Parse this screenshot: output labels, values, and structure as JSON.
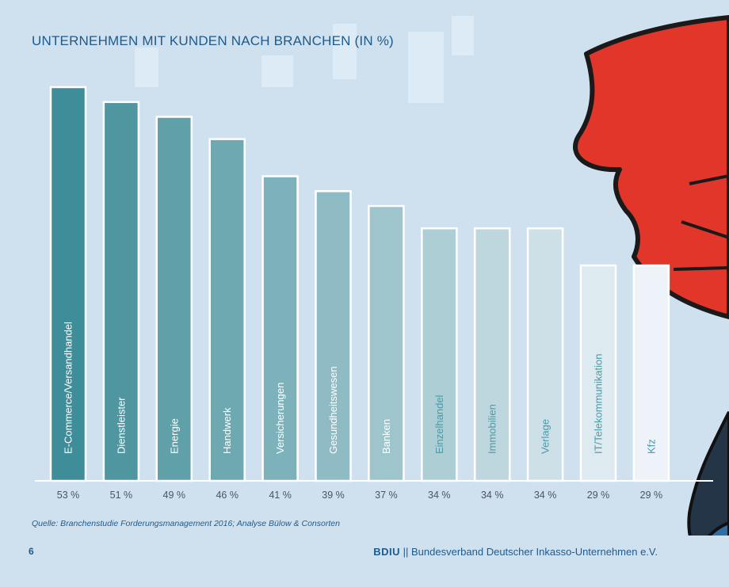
{
  "page": {
    "title": "UNTERNEHMEN MIT KUNDEN NACH BRANCHEN (IN %)",
    "source": "Quelle: Branchenstudie Forderungsmanagement 2016; Analyse Bülow & Consorten",
    "page_number": "6",
    "footer_brand": "BDIU",
    "footer_separator": " || ",
    "footer_org": "Bundesverband Deutscher Inkasso-Unternehmen e.V."
  },
  "colors": {
    "background": "#cfe1ef",
    "title": "#1e5a8c",
    "bar_start": "#3f8d98",
    "bar_end": "#edf3f8",
    "label_dark_text": "#ffffff",
    "label_light_text": "#4a9aa8",
    "value_text": "#4a5560",
    "illustration_red": "#e2362a"
  },
  "chart_data": {
    "type": "bar",
    "orientation": "vertical",
    "categories": [
      "E-Commerce/Versandhandel",
      "Dienstleister",
      "Energie",
      "Handwerk",
      "Versicherungen",
      "Gesundheitswesen",
      "Banken",
      "Einzelhandel",
      "Immobilien",
      "Verlage",
      "IT/Telekommunikation",
      "Kfz"
    ],
    "values": [
      53,
      51,
      49,
      46,
      41,
      39,
      37,
      34,
      34,
      34,
      29,
      29
    ],
    "value_labels": [
      "53 %",
      "51 %",
      "49 %",
      "46 %",
      "41 %",
      "39 %",
      "37 %",
      "34 %",
      "34 %",
      "34 %",
      "29 %",
      "29 %"
    ],
    "ylim": [
      0,
      53
    ],
    "grid": false,
    "legend": "none",
    "category_label_placement": "inside-bar-vertical"
  }
}
